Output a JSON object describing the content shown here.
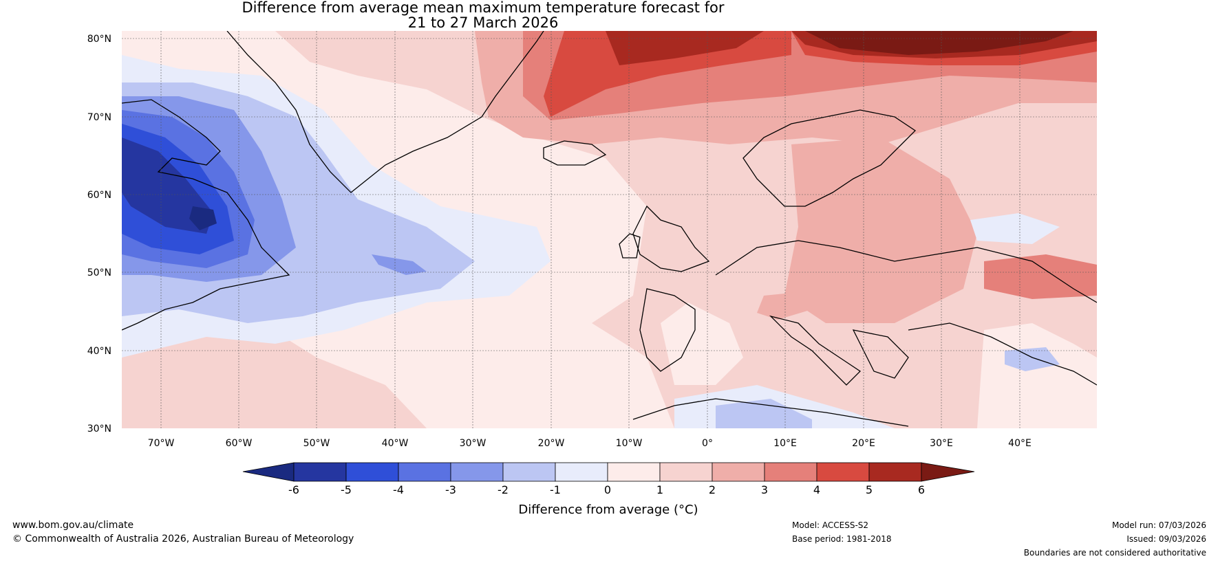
{
  "title": {
    "line1": "Difference from average mean maximum temperature forecast for",
    "line2": "21 to 27 March 2026"
  },
  "map": {
    "lat_labels": [
      "80°N",
      "70°N",
      "60°N",
      "50°N",
      "40°N",
      "30°N"
    ],
    "lon_labels": [
      "70°W",
      "60°W",
      "50°W",
      "40°W",
      "30°W",
      "20°W",
      "10°W",
      "0°",
      "10°E",
      "20°E",
      "30°E",
      "40°E"
    ],
    "lat_range": [
      30,
      80
    ],
    "lon_range": [
      -75,
      50
    ]
  },
  "colorbar": {
    "ticks": [
      "-6",
      "-5",
      "-4",
      "-3",
      "-2",
      "-1",
      "0",
      "1",
      "2",
      "3",
      "4",
      "5",
      "6"
    ],
    "label": "Difference from average (°C)",
    "colors": {
      "below_-6": "#1a2a80",
      "-6_-5": "#2536a0",
      "-5_-4": "#2f4fd8",
      "-4_-3": "#5a72e2",
      "-3_-2": "#8597ea",
      "-2_-1": "#bcc6f3",
      "-1_0": "#e8ecfb",
      "0_1": "#fdecea",
      "1_2": "#f6d3d0",
      "2_3": "#efaea9",
      "3_4": "#e5807a",
      "4_5": "#d84a40",
      "5_6": "#a82920",
      "above_6": "#7a1a14"
    }
  },
  "footer": {
    "website": "www.bom.gov.au/climate",
    "copyright": "© Commonwealth of Australia 2026, Australian Bureau of Meteorology",
    "model": "Model: ACCESS-S2",
    "base_period": "Base period: 1981-2018",
    "model_run": "Model run: 07/03/2026",
    "issued": "Issued: 09/03/2026",
    "disclaimer": "Boundaries are not considered authoritative"
  }
}
